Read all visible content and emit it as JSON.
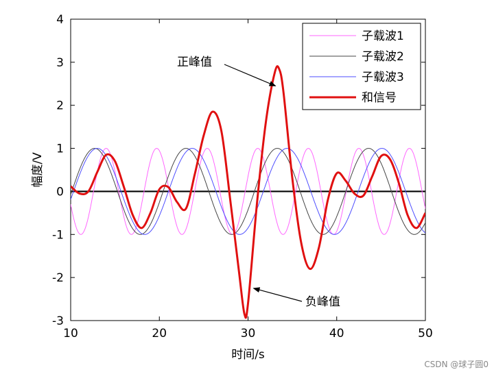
{
  "chart_data": {
    "type": "line",
    "xlabel": "时间/s",
    "ylabel": "幅度/V",
    "xlim": [
      10,
      50
    ],
    "ylim": [
      -3,
      4
    ],
    "xticks": [
      10,
      20,
      30,
      40,
      50
    ],
    "yticks": [
      -3,
      -2,
      -1,
      0,
      1,
      2,
      3,
      4
    ],
    "grid": false,
    "legend_position": "top-right",
    "series": [
      {
        "name": "子载波1",
        "color": "#ff66ff",
        "width": 1,
        "model": {
          "amplitude": 1,
          "period": 5.7,
          "phase_x": 14.0
        }
      },
      {
        "name": "子载波2",
        "color": "#444444",
        "width": 1,
        "model": {
          "amplitude": 1,
          "period": 10.3,
          "phase_x": 33.3
        }
      },
      {
        "name": "子载波3",
        "color": "#4d4dff",
        "width": 1,
        "model": {
          "amplitude": 1,
          "period": 10.7,
          "phase_x": 13.0
        }
      },
      {
        "name": "和信号",
        "color": "#e01010",
        "width": 3,
        "x": [
          10,
          11,
          12,
          13,
          14,
          15,
          16,
          17,
          18,
          19,
          20,
          21,
          22,
          23,
          24,
          25,
          26,
          27,
          28,
          29,
          29.6,
          30,
          31,
          32,
          33,
          33.5,
          34,
          35,
          36,
          37,
          38,
          39,
          40,
          41,
          42,
          43,
          44,
          45,
          46,
          47,
          48,
          49,
          50
        ],
        "values": [
          0.12,
          -0.05,
          0.0,
          0.45,
          0.85,
          0.7,
          0.1,
          -0.55,
          -0.85,
          -0.5,
          0.05,
          0.1,
          -0.25,
          -0.4,
          0.4,
          1.3,
          1.85,
          1.4,
          -0.2,
          -1.9,
          -2.85,
          -2.6,
          -0.3,
          1.6,
          2.75,
          2.85,
          2.3,
          0.3,
          -1.2,
          -1.8,
          -1.3,
          -0.2,
          0.42,
          0.25,
          -0.05,
          -0.1,
          0.35,
          0.82,
          0.75,
          0.2,
          -0.55,
          -0.85,
          -0.5
        ]
      }
    ],
    "annotations": [
      {
        "text": "正峰值",
        "target": [
          33.1,
          2.45
        ]
      },
      {
        "text": "负峰值",
        "target": [
          30.0,
          -2.25
        ]
      }
    ]
  },
  "watermark": "CSDN @球子圆0"
}
